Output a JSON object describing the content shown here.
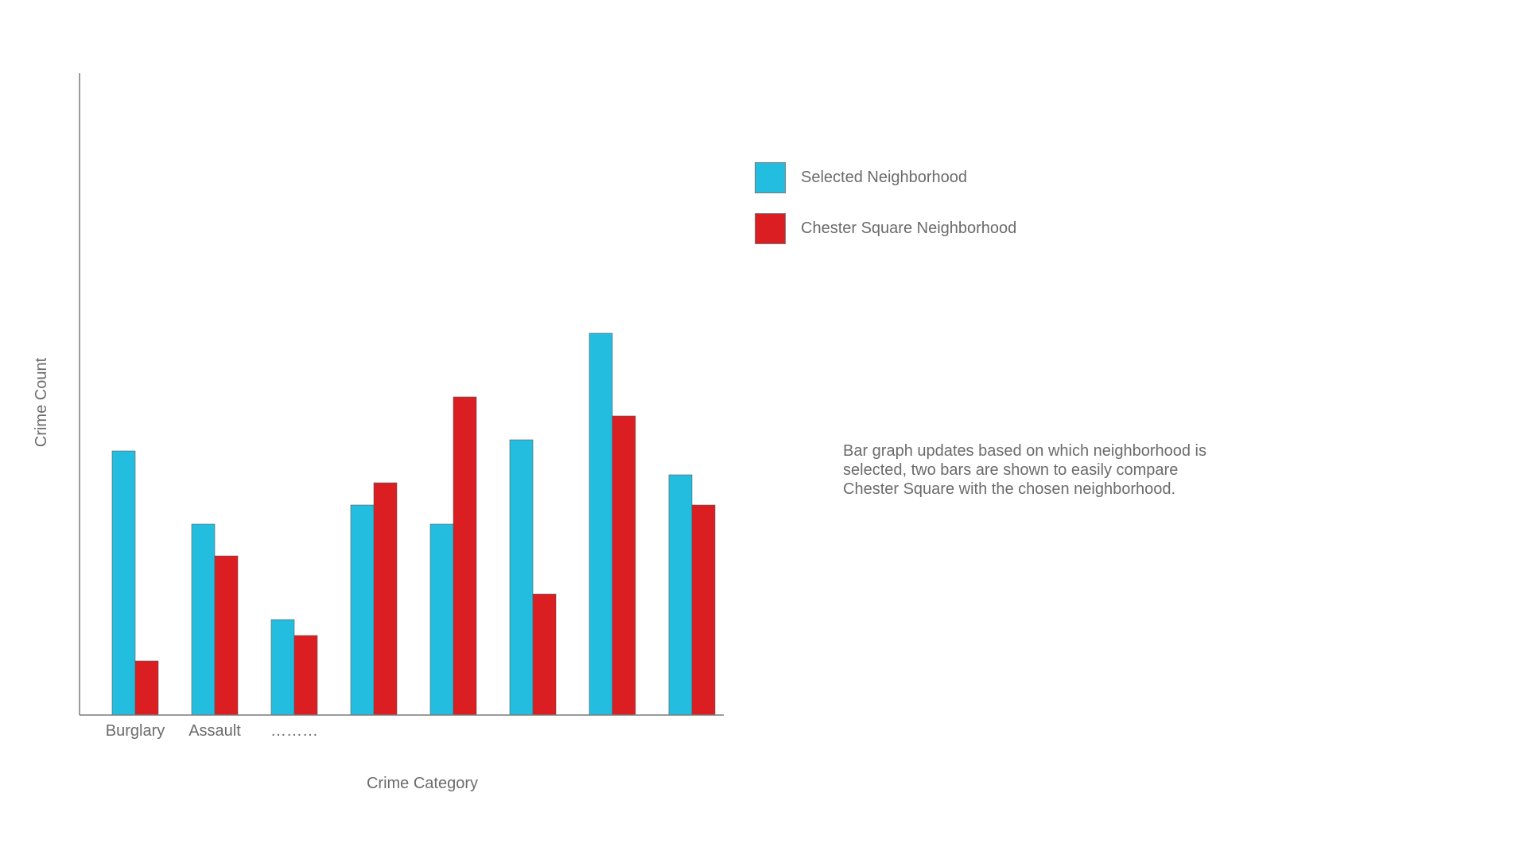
{
  "chart_data": {
    "type": "bar",
    "categories": [
      "Burglary",
      "Assault",
      "………",
      "",
      "",
      "",
      "",
      ""
    ],
    "series": [
      {
        "name": "Selected Neighborhood",
        "color": "#23BEDF",
        "values": [
          8.3,
          6.0,
          3.0,
          6.6,
          6.0,
          8.65,
          12.0,
          7.55
        ]
      },
      {
        "name": "Chester Square Neighborhood",
        "color": "#DA1E21",
        "values": [
          1.7,
          5.0,
          2.5,
          7.3,
          10.0,
          3.8,
          9.4,
          6.6
        ]
      }
    ],
    "xlabel": "Crime Category",
    "ylabel": "Crime Count",
    "ylim": [
      0,
      20.3
    ],
    "grid": false,
    "legend_position": "right",
    "note": "Bar graph updates based on which neighborhood is selected, two bars are shown to easily compare Chester Square with the chosen neighborhood."
  }
}
